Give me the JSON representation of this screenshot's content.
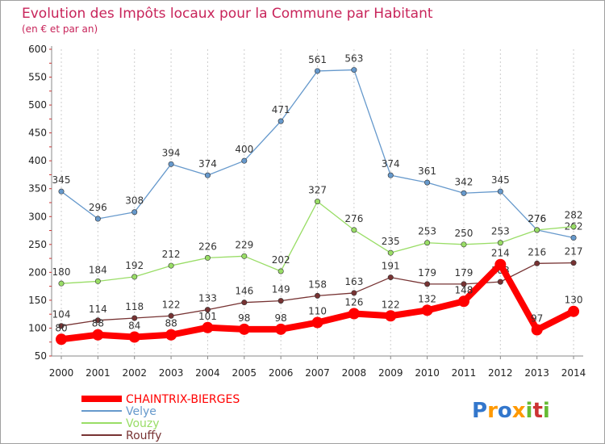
{
  "chart_data": {
    "type": "line",
    "title": "Evolution des Impôts locaux pour la Commune par Habitant",
    "subtitle": "(en € et par an)",
    "xlabel": "",
    "ylabel": "",
    "x": [
      "2000",
      "2001",
      "2002",
      "2003",
      "2004",
      "2005",
      "2006",
      "2007",
      "2008",
      "2009",
      "2010",
      "2011",
      "2012",
      "2013",
      "2014"
    ],
    "ylim": [
      50,
      600
    ],
    "yticks": [
      50,
      100,
      150,
      200,
      250,
      300,
      350,
      400,
      450,
      500,
      550,
      600
    ],
    "grid": "vertical",
    "legend_position": "bottom-left",
    "series": [
      {
        "name": "CHAINTRIX-BIERGES",
        "color": "#ff0000",
        "values": [
          80,
          88,
          84,
          88,
          101,
          98,
          98,
          110,
          126,
          122,
          132,
          148,
          214,
          97,
          130
        ],
        "labels": [
          "80",
          "88",
          "84",
          "88",
          "101",
          "98",
          "98",
          "110",
          "126",
          "122",
          "132",
          "148",
          "214",
          "97",
          "130"
        ]
      },
      {
        "name": "Velye",
        "color": "#6699cc",
        "values": [
          345,
          296,
          308,
          394,
          374,
          400,
          471,
          561,
          563,
          374,
          361,
          342,
          345,
          276,
          262
        ],
        "labels": [
          "345",
          "296",
          "308",
          "394",
          "374",
          "400",
          "471",
          "561",
          "563",
          "374",
          "361",
          "342",
          "345",
          "276",
          "262"
        ]
      },
      {
        "name": "Vouzy",
        "color": "#99dd66",
        "values": [
          180,
          184,
          192,
          212,
          226,
          229,
          202,
          327,
          276,
          235,
          253,
          250,
          253,
          276,
          282
        ],
        "labels": [
          "180",
          "184",
          "192",
          "212",
          "226",
          "229",
          "202",
          "327",
          "276",
          "235",
          "253",
          "250",
          "253",
          "276",
          "282"
        ]
      },
      {
        "name": "Rouffy",
        "color": "#773333",
        "values": [
          104,
          114,
          118,
          122,
          133,
          146,
          149,
          158,
          163,
          191,
          179,
          179,
          183,
          216,
          217
        ],
        "labels": [
          "104",
          "114",
          "118",
          "122",
          "133",
          "146",
          "149",
          "158",
          "163",
          "191",
          "179",
          "179",
          "183",
          "216",
          "217"
        ]
      }
    ]
  },
  "logo": {
    "text": "Proxiti",
    "colors": [
      "#3377cc",
      "#ff9900",
      "#66bb33",
      "#cc3333"
    ]
  }
}
